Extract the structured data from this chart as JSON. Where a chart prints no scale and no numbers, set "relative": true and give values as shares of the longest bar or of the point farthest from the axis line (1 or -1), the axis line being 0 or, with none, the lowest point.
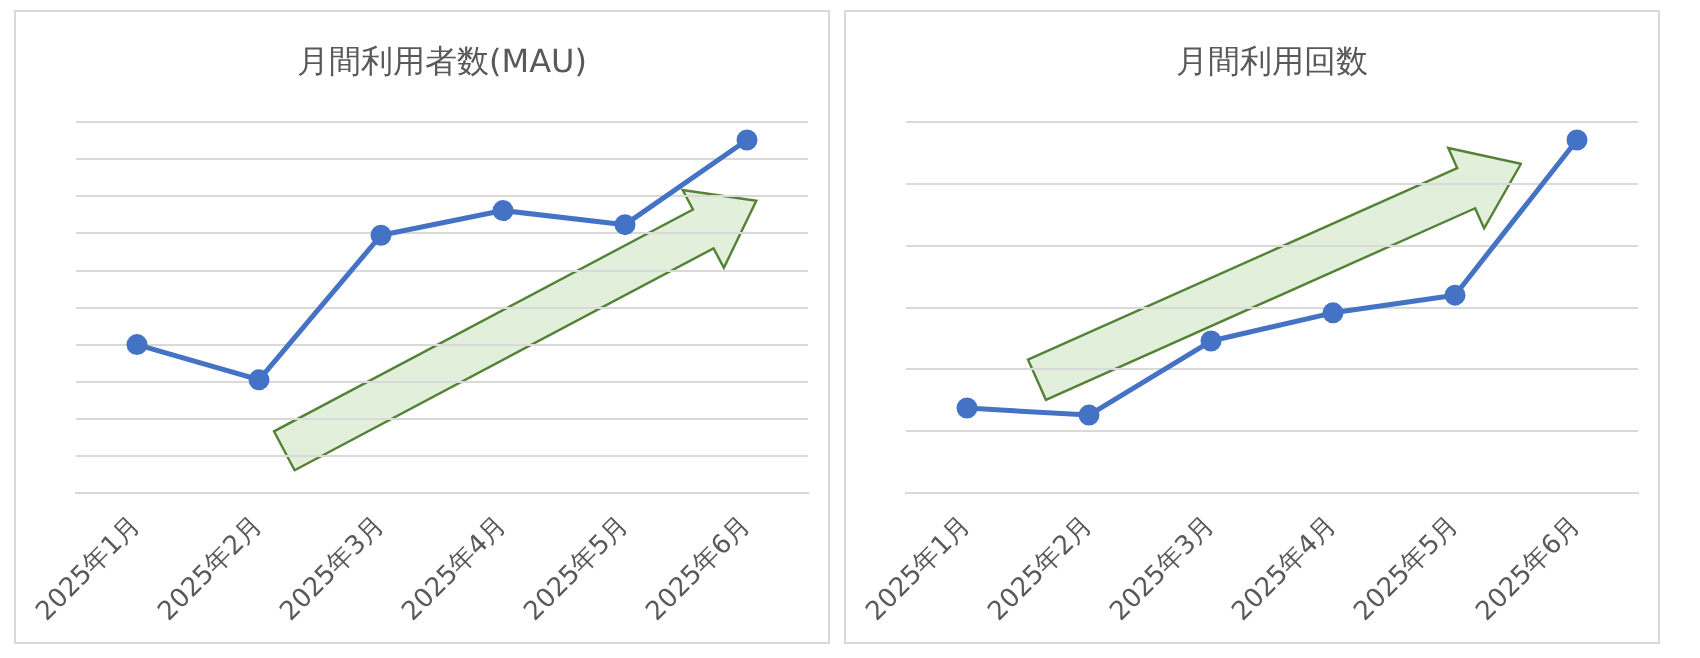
{
  "chart_data": [
    {
      "type": "line",
      "title": "月間利用者数(MAU)",
      "categories": [
        "2025年1月",
        "2025年2月",
        "2025年3月",
        "2025年4月",
        "2025年5月",
        "2025年6月"
      ],
      "relative": true,
      "grid": "y",
      "legend": false,
      "marker": "circle",
      "line_style": "solid",
      "tick_labels": "x",
      "series": [
        {
          "color": "#4472c4",
          "values": [
            0.42,
            0.32,
            0.73,
            0.8,
            0.76,
            1
          ]
        }
      ]
    },
    {
      "type": "line",
      "title": "月間利用回数",
      "categories": [
        "2025年1月",
        "2025年2月",
        "2025年3月",
        "2025年4月",
        "2025年5月",
        "2025年6月"
      ],
      "relative": true,
      "grid": "y",
      "legend": false,
      "marker": "circle",
      "line_style": "solid",
      "tick_labels": "x",
      "series": [
        {
          "color": "#4472c4",
          "values": [
            0.24,
            0.22,
            0.43,
            0.51,
            0.56,
            1
          ]
        }
      ]
    }
  ]
}
